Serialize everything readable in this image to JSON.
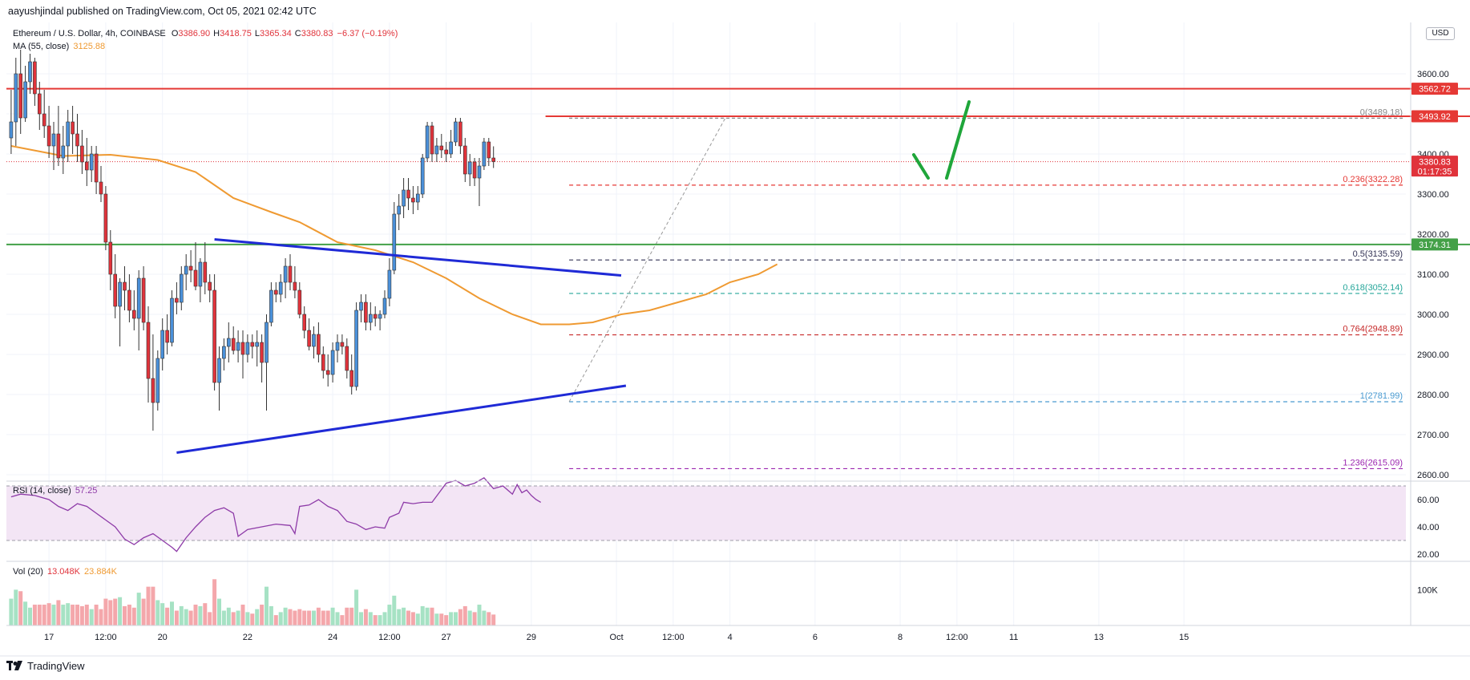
{
  "publisher_line": "aayushjindal published on TradingView.com, Oct 05, 2021 02:42 UTC",
  "legend": {
    "symbol": "Ethereum / U.S. Dollar, 4h, COINBASE",
    "ohlc": [
      {
        "k": "O",
        "v": "3386.90"
      },
      {
        "k": "H",
        "v": "3418.75"
      },
      {
        "k": "L",
        "v": "3365.34"
      },
      {
        "k": "C",
        "v": "3380.83"
      }
    ],
    "change": "−6.37 (−0.19%)",
    "ma_label": "MA (55, close)",
    "ma_value": "3125.88",
    "rsi_label": "RSI (14, close)",
    "rsi_value": "57.25",
    "vol_label": "Vol (20)",
    "vol_value1": "13.048K",
    "vol_value2": "23.884K"
  },
  "currency_badge": "USD",
  "brand": "TradingView",
  "colors": {
    "up": "#4a90d9",
    "down": "#e0333b",
    "ma": "#ef9a32",
    "trendline": "#1f2ad6",
    "resistance": "#e53935",
    "support": "#43a047",
    "arrow": "#1fa63a",
    "rsi": "#8e3ba8",
    "vol_up": "#a6e2c4",
    "vol_down": "#f4a7ab"
  },
  "chart_data": {
    "type": "candlestick",
    "title": "Ethereum / U.S. Dollar, 4h, COINBASE",
    "price_axis": {
      "min": 2600,
      "max": 3700,
      "ticks": [
        2600,
        2700,
        2800,
        2900,
        3000,
        3100,
        3200,
        3300,
        3400,
        3500,
        3600
      ],
      "tick_labels": [
        "2600.00",
        "2700.00",
        "2800.00",
        "2900.00",
        "3000.00",
        "3100.00",
        "3200.00",
        "3300.00",
        "3400.00",
        "3500.00",
        "3600.00"
      ]
    },
    "time_axis": {
      "ticks": [
        {
          "bar": 9,
          "label": "17"
        },
        {
          "bar": 21,
          "label": "12:00"
        },
        {
          "bar": 33,
          "label": "20"
        },
        {
          "bar": 51,
          "label": "22"
        },
        {
          "bar": 69,
          "label": "24"
        },
        {
          "bar": 81,
          "label": "12:00"
        },
        {
          "bar": 93,
          "label": "27"
        },
        {
          "bar": 111,
          "label": "29"
        },
        {
          "bar": 129,
          "label": "Oct"
        },
        {
          "bar": 141,
          "label": "12:00"
        },
        {
          "bar": 153,
          "label": "4"
        },
        {
          "bar": 171,
          "label": "6"
        },
        {
          "bar": 189,
          "label": "8"
        },
        {
          "bar": 201,
          "label": "12:00"
        },
        {
          "bar": 213,
          "label": "11"
        },
        {
          "bar": 231,
          "label": "13"
        },
        {
          "bar": 249,
          "label": "15"
        }
      ]
    },
    "candles": [
      [
        3440,
        3560,
        3400,
        3480
      ],
      [
        3480,
        3640,
        3420,
        3600
      ],
      [
        3600,
        3660,
        3450,
        3490
      ],
      [
        3490,
        3620,
        3480,
        3580
      ],
      [
        3580,
        3650,
        3550,
        3630
      ],
      [
        3630,
        3640,
        3520,
        3550
      ],
      [
        3550,
        3580,
        3460,
        3500
      ],
      [
        3500,
        3560,
        3440,
        3470
      ],
      [
        3470,
        3520,
        3390,
        3420
      ],
      [
        3420,
        3480,
        3360,
        3450
      ],
      [
        3450,
        3520,
        3370,
        3390
      ],
      [
        3390,
        3470,
        3350,
        3420
      ],
      [
        3420,
        3510,
        3380,
        3480
      ],
      [
        3480,
        3520,
        3400,
        3450
      ],
      [
        3450,
        3500,
        3380,
        3420
      ],
      [
        3420,
        3460,
        3350,
        3380
      ],
      [
        3380,
        3440,
        3320,
        3360
      ],
      [
        3360,
        3420,
        3330,
        3400
      ],
      [
        3400,
        3420,
        3300,
        3330
      ],
      [
        3330,
        3370,
        3280,
        3300
      ],
      [
        3300,
        3320,
        3160,
        3180
      ],
      [
        3180,
        3210,
        3060,
        3100
      ],
      [
        3100,
        3150,
        2990,
        3020
      ],
      [
        3020,
        3090,
        2920,
        3080
      ],
      [
        3080,
        3120,
        3010,
        3060
      ],
      [
        3060,
        3100,
        2980,
        3010
      ],
      [
        3010,
        3060,
        2960,
        2990
      ],
      [
        2990,
        3110,
        2910,
        3090
      ],
      [
        3090,
        3120,
        2960,
        2980
      ],
      [
        2980,
        3020,
        2780,
        2840
      ],
      [
        2840,
        2950,
        2710,
        2780
      ],
      [
        2780,
        2910,
        2760,
        2890
      ],
      [
        2890,
        2990,
        2860,
        2960
      ],
      [
        2960,
        3000,
        2900,
        2930
      ],
      [
        2930,
        3060,
        2920,
        3040
      ],
      [
        3040,
        3080,
        3000,
        3030
      ],
      [
        3030,
        3120,
        3010,
        3100
      ],
      [
        3100,
        3150,
        3060,
        3120
      ],
      [
        3120,
        3160,
        3080,
        3110
      ],
      [
        3110,
        3180,
        3060,
        3070
      ],
      [
        3070,
        3140,
        3030,
        3130
      ],
      [
        3130,
        3180,
        3050,
        3080
      ],
      [
        3080,
        3100,
        3030,
        3060
      ],
      [
        3060,
        3100,
        2810,
        2830
      ],
      [
        2830,
        2920,
        2760,
        2890
      ],
      [
        2890,
        2940,
        2860,
        2920
      ],
      [
        2920,
        2980,
        2880,
        2940
      ],
      [
        2940,
        2970,
        2900,
        2910
      ],
      [
        2910,
        2960,
        2880,
        2930
      ],
      [
        2930,
        2960,
        2840,
        2900
      ],
      [
        2900,
        2950,
        2880,
        2930
      ],
      [
        2930,
        2950,
        2890,
        2920
      ],
      [
        2920,
        2960,
        2870,
        2930
      ],
      [
        2930,
        2950,
        2830,
        2880
      ],
      [
        2880,
        3000,
        2760,
        2980
      ],
      [
        2980,
        3080,
        2970,
        3060
      ],
      [
        3060,
        3080,
        3030,
        3050
      ],
      [
        3050,
        3100,
        3030,
        3080
      ],
      [
        3080,
        3140,
        3040,
        3120
      ],
      [
        3120,
        3150,
        3060,
        3080
      ],
      [
        3080,
        3120,
        3040,
        3060
      ],
      [
        3060,
        3080,
        2990,
        3000
      ],
      [
        3000,
        3020,
        2940,
        2960
      ],
      [
        2960,
        2990,
        2910,
        2920
      ],
      [
        2920,
        2970,
        2890,
        2950
      ],
      [
        2950,
        2980,
        2880,
        2900
      ],
      [
        2900,
        2920,
        2840,
        2860
      ],
      [
        2860,
        2900,
        2820,
        2850
      ],
      [
        2850,
        2930,
        2830,
        2910
      ],
      [
        2910,
        2950,
        2880,
        2930
      ],
      [
        2930,
        2950,
        2900,
        2920
      ],
      [
        2920,
        2940,
        2840,
        2860
      ],
      [
        2860,
        2900,
        2800,
        2820
      ],
      [
        2820,
        3030,
        2810,
        3010
      ],
      [
        3010,
        3050,
        2980,
        3030
      ],
      [
        3030,
        3050,
        2960,
        2980
      ],
      [
        2980,
        3030,
        2960,
        3000
      ],
      [
        3000,
        3020,
        2970,
        2990
      ],
      [
        2990,
        3010,
        2960,
        3000
      ],
      [
        3000,
        3060,
        2990,
        3040
      ],
      [
        3040,
        3140,
        3020,
        3110
      ],
      [
        3110,
        3280,
        3100,
        3250
      ],
      [
        3250,
        3300,
        3210,
        3270
      ],
      [
        3270,
        3340,
        3240,
        3310
      ],
      [
        3310,
        3340,
        3260,
        3290
      ],
      [
        3290,
        3320,
        3250,
        3280
      ],
      [
        3280,
        3320,
        3260,
        3300
      ],
      [
        3300,
        3400,
        3290,
        3390
      ],
      [
        3390,
        3480,
        3380,
        3470
      ],
      [
        3470,
        3480,
        3380,
        3400
      ],
      [
        3400,
        3440,
        3380,
        3420
      ],
      [
        3420,
        3450,
        3390,
        3410
      ],
      [
        3410,
        3430,
        3380,
        3400
      ],
      [
        3400,
        3460,
        3390,
        3430
      ],
      [
        3430,
        3490,
        3420,
        3480
      ],
      [
        3480,
        3490,
        3400,
        3420
      ],
      [
        3420,
        3440,
        3330,
        3350
      ],
      [
        3350,
        3400,
        3320,
        3380
      ],
      [
        3380,
        3390,
        3320,
        3340
      ],
      [
        3340,
        3390,
        3270,
        3370
      ],
      [
        3370,
        3440,
        3360,
        3430
      ],
      [
        3430,
        3440,
        3370,
        3390
      ],
      [
        3390,
        3419,
        3365,
        3381
      ]
    ],
    "candle_start_bar": 1,
    "ma55": [
      {
        "bar": 1,
        "value": 3420
      },
      {
        "bar": 12,
        "value": 3395
      },
      {
        "bar": 22,
        "value": 3398
      },
      {
        "bar": 32,
        "value": 3385
      },
      {
        "bar": 40,
        "value": 3355
      },
      {
        "bar": 48,
        "value": 3290
      },
      {
        "bar": 56,
        "value": 3255
      },
      {
        "bar": 62,
        "value": 3230
      },
      {
        "bar": 70,
        "value": 3180
      },
      {
        "bar": 78,
        "value": 3160
      },
      {
        "bar": 86,
        "value": 3130
      },
      {
        "bar": 93,
        "value": 3090
      },
      {
        "bar": 100,
        "value": 3040
      },
      {
        "bar": 107,
        "value": 3000
      },
      {
        "bar": 113,
        "value": 2975
      },
      {
        "bar": 119,
        "value": 2975
      },
      {
        "bar": 124,
        "value": 2980
      },
      {
        "bar": 130,
        "value": 3000
      },
      {
        "bar": 136,
        "value": 3010
      },
      {
        "bar": 142,
        "value": 3030
      },
      {
        "bar": 148,
        "value": 3050
      },
      {
        "bar": 153,
        "value": 3080
      },
      {
        "bar": 159,
        "value": 3100
      },
      {
        "bar": 163,
        "value": 3125
      }
    ],
    "resistance_level": 3562.72,
    "resistance_label": "3562.72",
    "recent_high_level": 3493.92,
    "recent_high_label": "3493.92",
    "support_level": 3174.31,
    "support_label": "3174.31",
    "last_price": 3380.83,
    "last_price_label": "3380.83",
    "countdown": "01:17:35",
    "fib": [
      {
        "ratio": "0",
        "value": "3489.18",
        "level": 3489.18,
        "color": "#888888",
        "dash": "4,3"
      },
      {
        "ratio": "0.236",
        "value": "3322.28",
        "level": 3322.28,
        "color": "#e53935",
        "dash": "5,4"
      },
      {
        "ratio": "0.5",
        "value": "3135.59",
        "level": 3135.59,
        "color": "#333355",
        "dash": "5,4"
      },
      {
        "ratio": "0.618",
        "value": "3052.14",
        "level": 3052.14,
        "color": "#26a69a",
        "dash": "5,4"
      },
      {
        "ratio": "0.764",
        "value": "2948.89",
        "level": 2948.89,
        "color": "#c62828",
        "dash": "5,4"
      },
      {
        "ratio": "1",
        "value": "2781.99",
        "level": 2781.99,
        "color": "#4a9bd1",
        "dash": "5,4"
      },
      {
        "ratio": "1.236",
        "value": "2615.09",
        "level": 2615.09,
        "color": "#9c27b0",
        "dash": "5,4"
      }
    ],
    "trendlines": [
      {
        "from": {
          "bar": 44,
          "value": 3187
        },
        "to": {
          "bar": 130,
          "value": 3097
        }
      },
      {
        "from": {
          "bar": 36,
          "value": 2655
        },
        "to": {
          "bar": 131,
          "value": 2822
        }
      }
    ],
    "rsi": {
      "min": 20,
      "max": 80,
      "ticks": [
        20,
        40,
        60
      ],
      "tick_labels": [
        "20.00",
        "40.00",
        "60.00"
      ],
      "upper_band": 70,
      "lower_band": 30,
      "values": [
        {
          "bar": 1,
          "value": 62
        },
        {
          "bar": 3,
          "value": 64
        },
        {
          "bar": 6,
          "value": 63
        },
        {
          "bar": 9,
          "value": 60
        },
        {
          "bar": 11,
          "value": 55
        },
        {
          "bar": 13,
          "value": 52
        },
        {
          "bar": 15,
          "value": 57
        },
        {
          "bar": 17,
          "value": 55
        },
        {
          "bar": 19,
          "value": 50
        },
        {
          "bar": 21,
          "value": 45
        },
        {
          "bar": 23,
          "value": 40
        },
        {
          "bar": 25,
          "value": 31
        },
        {
          "bar": 27,
          "value": 27
        },
        {
          "bar": 29,
          "value": 32
        },
        {
          "bar": 31,
          "value": 35
        },
        {
          "bar": 33,
          "value": 30
        },
        {
          "bar": 35,
          "value": 25
        },
        {
          "bar": 36,
          "value": 22
        },
        {
          "bar": 38,
          "value": 32
        },
        {
          "bar": 40,
          "value": 40
        },
        {
          "bar": 42,
          "value": 47
        },
        {
          "bar": 44,
          "value": 52
        },
        {
          "bar": 46,
          "value": 54
        },
        {
          "bar": 48,
          "value": 50
        },
        {
          "bar": 49,
          "value": 33
        },
        {
          "bar": 51,
          "value": 38
        },
        {
          "bar": 54,
          "value": 40
        },
        {
          "bar": 57,
          "value": 42
        },
        {
          "bar": 60,
          "value": 41
        },
        {
          "bar": 61,
          "value": 35
        },
        {
          "bar": 62,
          "value": 55
        },
        {
          "bar": 64,
          "value": 56
        },
        {
          "bar": 66,
          "value": 60
        },
        {
          "bar": 68,
          "value": 55
        },
        {
          "bar": 70,
          "value": 52
        },
        {
          "bar": 72,
          "value": 44
        },
        {
          "bar": 74,
          "value": 42
        },
        {
          "bar": 76,
          "value": 38
        },
        {
          "bar": 78,
          "value": 40
        },
        {
          "bar": 80,
          "value": 39
        },
        {
          "bar": 81,
          "value": 47
        },
        {
          "bar": 83,
          "value": 50
        },
        {
          "bar": 84,
          "value": 58
        },
        {
          "bar": 86,
          "value": 57
        },
        {
          "bar": 88,
          "value": 58
        },
        {
          "bar": 90,
          "value": 58
        },
        {
          "bar": 93,
          "value": 72
        },
        {
          "bar": 95,
          "value": 74
        },
        {
          "bar": 97,
          "value": 70
        },
        {
          "bar": 99,
          "value": 72
        },
        {
          "bar": 101,
          "value": 76
        },
        {
          "bar": 103,
          "value": 68
        },
        {
          "bar": 105,
          "value": 70
        },
        {
          "bar": 107,
          "value": 64
        },
        {
          "bar": 108,
          "value": 71
        },
        {
          "bar": 109,
          "value": 65
        },
        {
          "bar": 110,
          "value": 67
        },
        {
          "bar": 111,
          "value": 63
        },
        {
          "bar": 112,
          "value": 60
        },
        {
          "bar": 113,
          "value": 58
        }
      ]
    },
    "volume": {
      "tick_label": "100K",
      "tick_value": 100000,
      "max": 180000
    }
  }
}
